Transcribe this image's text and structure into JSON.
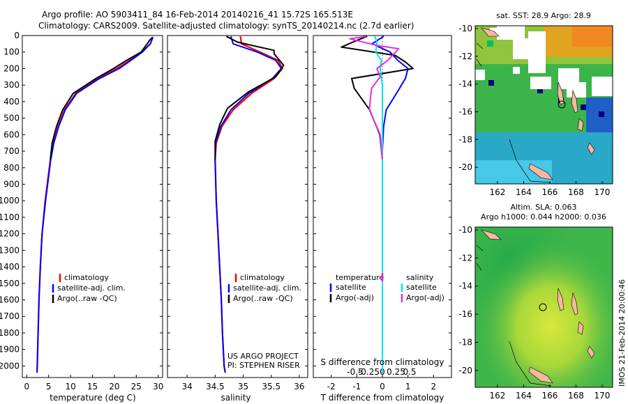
{
  "header": {
    "title_line1": "Argo profile: AO 5903411_84 16-Feb-2014 20140216_41 15.72S 165.513E",
    "title_line2": "Climatology: CARS2009. Satellite-adjusted climatology: synTS_20140214.nc (2.7d earlier)"
  },
  "colors": {
    "climatology": "#ff0000",
    "satellite": "#0000ff",
    "argo": "#000000",
    "salinity_sat": "#00e5ee",
    "salinity_argo": "#e030e0",
    "land": "#f4b8a0"
  },
  "chart_data": [
    {
      "type": "line",
      "id": "temperature",
      "xlabel": "temperature (deg C)",
      "ylabel": "",
      "xlim": [
        -1,
        31
      ],
      "ylim": [
        2070,
        0
      ],
      "xticks": [
        "0",
        "5",
        "10",
        "15",
        "20",
        "25",
        "30"
      ],
      "yticks": [
        "0",
        "100",
        "200",
        "300",
        "400",
        "500",
        "600",
        "700",
        "800",
        "900",
        "1000",
        "1100",
        "1200",
        "1300",
        "1400",
        "1500",
        "1600",
        "1700",
        "1800",
        "1900",
        "2000"
      ],
      "legend": [
        "climatology",
        "satellite-adj. clim.",
        "Argo(..raw -QC)"
      ],
      "series": [
        {
          "name": "climatology",
          "color": "#ff0000",
          "x": [
            28.8,
            28.2,
            26.3,
            23.5,
            20.6,
            16.2,
            11.2,
            8.6,
            7.2,
            6.1,
            5.4,
            4.2,
            3.5,
            3.1,
            2.8,
            2.6,
            2.4,
            2.35
          ],
          "y": [
            10,
            50,
            100,
            150,
            200,
            260,
            350,
            450,
            550,
            650,
            750,
            1000,
            1200,
            1400,
            1600,
            1800,
            2000,
            2040
          ]
        },
        {
          "name": "satellite-adj. clim.",
          "color": "#0000ff",
          "x": [
            28.8,
            28.2,
            26.4,
            23.8,
            21.1,
            16.6,
            11.4,
            8.8,
            7.3,
            6.2,
            5.5,
            4.3,
            3.5,
            3.1,
            2.8,
            2.6,
            2.4,
            2.35
          ],
          "y": [
            10,
            50,
            100,
            150,
            200,
            260,
            350,
            450,
            550,
            650,
            750,
            1000,
            1200,
            1400,
            1600,
            1800,
            2000,
            2040
          ]
        },
        {
          "name": "Argo(..raw -QC)",
          "color": "#000000",
          "x": [
            28.7,
            28.0,
            27.5,
            26.1,
            22.8,
            19.8,
            15.8,
            10.6,
            8.2,
            6.8,
            5.8,
            5.4
          ],
          "y": [
            10,
            30,
            50,
            100,
            150,
            200,
            260,
            350,
            450,
            550,
            650,
            750
          ]
        }
      ]
    },
    {
      "type": "line",
      "id": "salinity",
      "xlabel": "salinity",
      "ylabel": "",
      "xlim": [
        33.65,
        36.15
      ],
      "ylim": [
        2070,
        0
      ],
      "xticks": [
        "34",
        "34.5",
        "35",
        "35.5",
        "36"
      ],
      "legend": [
        "climatology",
        "satellite-adj. clim.",
        "Argo(..raw -QC)"
      ],
      "annotations": [
        "US ARGO PROJECT",
        "PI: STEPHEN RISER"
      ],
      "series": [
        {
          "name": "climatology",
          "color": "#ff0000",
          "x": [
            34.95,
            34.97,
            35.3,
            35.62,
            35.7,
            35.55,
            35.15,
            34.82,
            34.62,
            34.52,
            34.5,
            34.52,
            34.55,
            34.58,
            34.61,
            34.63,
            34.66,
            34.68
          ],
          "y": [
            5,
            50,
            100,
            150,
            200,
            260,
            350,
            450,
            550,
            650,
            750,
            1000,
            1200,
            1400,
            1600,
            1800,
            2000,
            2040
          ]
        },
        {
          "name": "satellite-adj. clim.",
          "color": "#0000ff",
          "x": [
            34.78,
            34.82,
            35.25,
            35.58,
            35.68,
            35.52,
            35.1,
            34.78,
            34.6,
            34.51,
            34.5,
            34.52,
            34.55,
            34.58,
            34.61,
            34.63,
            34.66,
            34.68
          ],
          "y": [
            5,
            50,
            100,
            150,
            200,
            260,
            350,
            450,
            550,
            650,
            750,
            1000,
            1200,
            1400,
            1600,
            1800,
            2000,
            2040
          ]
        },
        {
          "name": "Argo(..raw -QC)",
          "color": "#000000",
          "x": [
            34.7,
            34.9,
            35.55,
            35.55,
            35.72,
            35.58,
            35.1,
            34.72,
            34.58,
            34.5,
            34.5
          ],
          "y": [
            5,
            40,
            90,
            110,
            180,
            250,
            340,
            440,
            540,
            640,
            750
          ]
        }
      ]
    },
    {
      "type": "line",
      "id": "differences",
      "xlabel": "T difference from climatology",
      "xlabel_top": "S difference from climatology",
      "xlim_T": [
        -2.7,
        2.7
      ],
      "xticks_T": [
        "-2",
        "-1",
        "0",
        "1",
        "2"
      ],
      "xticks_S": [
        "-0.5",
        "-0.25",
        "0",
        "0.25",
        "0.5"
      ],
      "ylim": [
        2070,
        0
      ],
      "legend_T": {
        "header": "temperature",
        "items": [
          "satellite",
          "Argo(-adj)"
        ]
      },
      "legend_S": {
        "header": "salinity",
        "items": [
          "satellite",
          "Argo(-adj)"
        ]
      },
      "series": [
        {
          "name": "temperature satellite",
          "color": "#0000ff",
          "x": [
            0.05,
            -0.4,
            0.3,
            0.6,
            1.0,
            0.9,
            0.55,
            0.15,
            0.05,
            0.0,
            0.0
          ],
          "y": [
            5,
            50,
            100,
            150,
            200,
            260,
            350,
            450,
            550,
            700,
            2040
          ]
        },
        {
          "name": "temperature Argo(-adj)",
          "color": "#000000",
          "x": [
            -0.6,
            -1.0,
            -1.6,
            0.5,
            0.9,
            1.2,
            -1.2,
            -1.1,
            -0.5,
            -0.1,
            0.0,
            0.0
          ],
          "y": [
            5,
            30,
            70,
            120,
            160,
            200,
            260,
            320,
            450,
            600,
            750,
            800
          ]
        },
        {
          "name": "salinity satellite",
          "color": "#00e5ee",
          "x": [
            -0.07,
            -0.05,
            -0.06,
            -0.01,
            -0.02,
            0.0,
            0.0
          ],
          "y": [
            5,
            40,
            100,
            150,
            200,
            300,
            2040
          ]
        },
        {
          "name": "salinity Argo(-adj)",
          "color": "#e030e0",
          "x": [
            -0.15,
            -0.3,
            -0.05,
            0.15,
            0.05,
            -0.05,
            -0.02,
            -0.1,
            -0.12,
            -0.02,
            0.0
          ],
          "y": [
            5,
            20,
            60,
            80,
            150,
            200,
            250,
            320,
            450,
            600,
            750
          ]
        }
      ]
    }
  ],
  "maps": {
    "sst": {
      "title": "sat. SST: 28.9 Argo: 28.9",
      "lon_ticks": [
        "162",
        "164",
        "166",
        "168",
        "170"
      ],
      "lat_ticks": [
        "-10",
        "-12",
        "-14",
        "-16",
        "-18",
        "-20"
      ]
    },
    "sla": {
      "title_line1": "Altim. SLA: 0.063",
      "title_line2": "Argo h1000: 0.044 h2000: 0.036",
      "lon_ticks": [
        "162",
        "164",
        "166",
        "168",
        "170"
      ],
      "lat_ticks": [
        "-10",
        "-12",
        "-14",
        "-16",
        "-18",
        "-20"
      ]
    }
  },
  "footer": {
    "timestamp": "IMOS 21-Feb-2014 20:00:46"
  }
}
